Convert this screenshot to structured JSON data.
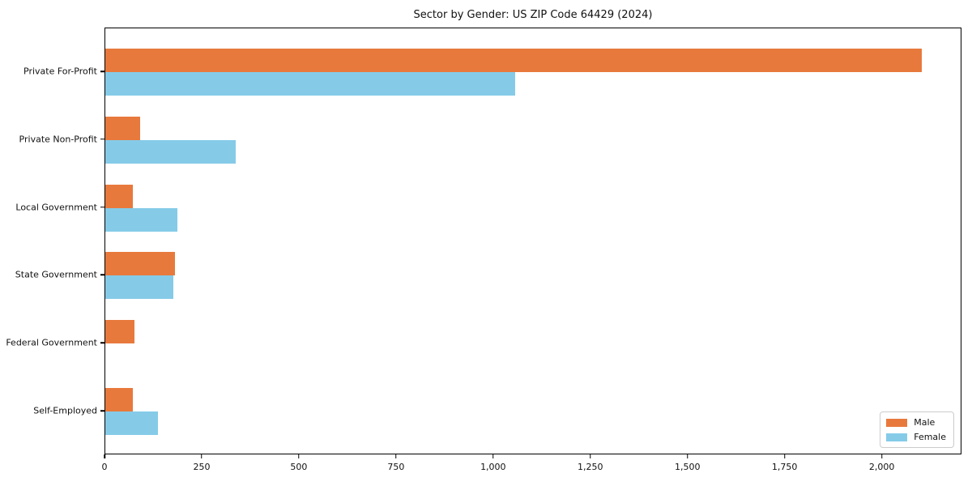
{
  "figure": {
    "title": "Sector by Gender: US ZIP Code 64429 (2024)"
  },
  "chart_data": {
    "type": "bar",
    "orientation": "horizontal",
    "title": "Sector by Gender: US ZIP Code 64429 (2024)",
    "categories": [
      "Private For-Profit",
      "Private Non-Profit",
      "Local Government",
      "State Government",
      "Federal Government",
      "Self-Employed"
    ],
    "series": [
      {
        "name": "Male",
        "color": "#e8793c",
        "values": [
          2100,
          90,
          70,
          180,
          75,
          70
        ]
      },
      {
        "name": "Female",
        "color": "#85cbe8",
        "values": [
          1055,
          335,
          185,
          175,
          0,
          135
        ]
      }
    ],
    "xlabel": "",
    "ylabel": "",
    "xlim": [
      0,
      2205
    ],
    "xticks": {
      "values": [
        0,
        250,
        500,
        750,
        1000,
        1250,
        1500,
        1750,
        2000
      ],
      "labels": [
        "0",
        "250",
        "500",
        "750",
        "1,000",
        "1,250",
        "1,500",
        "1,750",
        "2,000"
      ]
    },
    "grid": false,
    "legend": {
      "position": "lower-right",
      "items": [
        "Male",
        "Female"
      ]
    }
  }
}
